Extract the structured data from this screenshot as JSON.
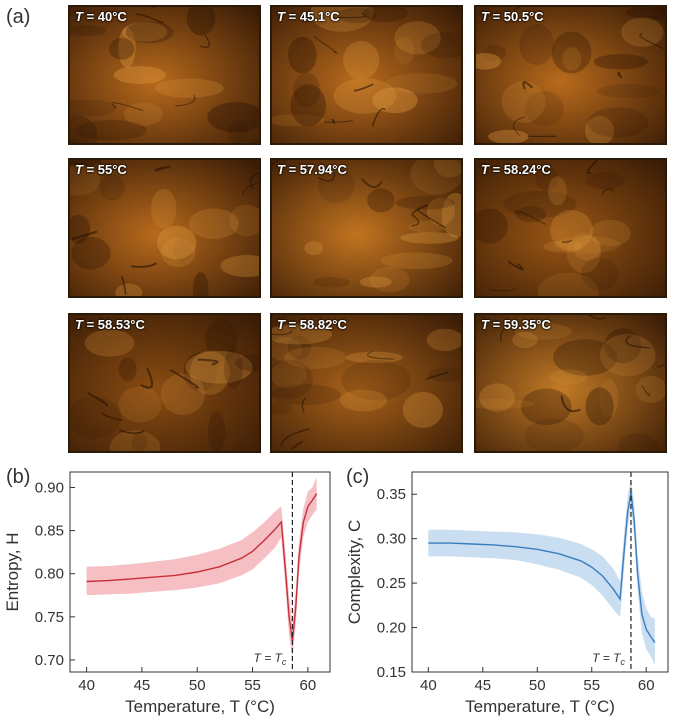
{
  "panel_labels": {
    "a": "(a)",
    "b": "(b)",
    "c": "(c)"
  },
  "micrographs": [
    {
      "symbol": "T",
      "value": " = 40°C",
      "tone": "#b86a1c",
      "dark": 0.55
    },
    {
      "symbol": "T",
      "value": " = 45.1°C",
      "tone": "#b86a1c",
      "dark": 0.55
    },
    {
      "symbol": "T",
      "value": " = 50.5°C",
      "tone": "#b86a1c",
      "dark": 0.55
    },
    {
      "symbol": "T",
      "value": " = 55°C",
      "tone": "#b86a1c",
      "dark": 0.55
    },
    {
      "symbol": "T",
      "value": " = 57.94°C",
      "tone": "#c27420",
      "dark": 0.45
    },
    {
      "symbol": "T",
      "value": " = 58.24°C",
      "tone": "#9a5614",
      "dark": 0.35
    },
    {
      "symbol": "T",
      "value": " = 58.53°C",
      "tone": "#8a4c12",
      "dark": 0.35
    },
    {
      "symbol": "T",
      "value": " = 58.82°C",
      "tone": "#a8621a",
      "dark": 0.4
    },
    {
      "symbol": "T",
      "value": " = 59.35°C",
      "tone": "#c27a26",
      "dark": 0.5
    }
  ],
  "chart_data": [
    {
      "type": "line",
      "panel": "(b)",
      "xlabel": "Temperature, T (°C)",
      "ylabel": "Entropy, H",
      "xlim": [
        38.5,
        62
      ],
      "ylim": [
        0.686,
        0.918
      ],
      "xticks": [
        40,
        45,
        50,
        55,
        60
      ],
      "yticks": [
        "0.70",
        "0.75",
        "0.80",
        "0.85",
        "0.90"
      ],
      "ytick_values": [
        0.7,
        0.75,
        0.8,
        0.85,
        0.9
      ],
      "color": "#c8313a",
      "band_color": "#f2a9b0",
      "vline_x": 58.6,
      "vline_label": "T = T_c",
      "x": [
        40,
        42,
        44,
        46,
        48,
        50,
        52,
        54,
        55,
        56,
        57,
        57.6,
        58,
        58.3,
        58.6,
        58.9,
        59.2,
        59.6,
        60,
        60.4,
        60.8
      ],
      "y": [
        0.791,
        0.792,
        0.794,
        0.796,
        0.798,
        0.802,
        0.808,
        0.818,
        0.826,
        0.838,
        0.851,
        0.86,
        0.8,
        0.75,
        0.722,
        0.76,
        0.82,
        0.86,
        0.878,
        0.885,
        0.893
      ],
      "upper": [
        0.808,
        0.809,
        0.811,
        0.814,
        0.817,
        0.822,
        0.829,
        0.839,
        0.848,
        0.859,
        0.872,
        0.878,
        0.822,
        0.772,
        0.742,
        0.78,
        0.838,
        0.876,
        0.895,
        0.9,
        0.912
      ],
      "lower": [
        0.775,
        0.776,
        0.777,
        0.779,
        0.781,
        0.784,
        0.789,
        0.798,
        0.805,
        0.817,
        0.83,
        0.842,
        0.78,
        0.728,
        0.703,
        0.74,
        0.801,
        0.843,
        0.86,
        0.868,
        0.875
      ]
    },
    {
      "type": "line",
      "panel": "(c)",
      "xlabel": "Temperature, T (°C)",
      "ylabel": "Complexity, C",
      "xlim": [
        38.5,
        62
      ],
      "ylim": [
        0.15,
        0.375
      ],
      "xticks": [
        40,
        45,
        50,
        55,
        60
      ],
      "yticks": [
        "0.15",
        "0.20",
        "0.25",
        "0.30",
        "0.35"
      ],
      "ytick_values": [
        0.15,
        0.2,
        0.25,
        0.3,
        0.35
      ],
      "color": "#3b7dc0",
      "band_color": "#b7d4ec",
      "vline_x": 58.6,
      "vline_label": "T = T_c",
      "x": [
        40,
        42,
        44,
        46,
        48,
        50,
        52,
        54,
        55,
        56,
        57,
        57.6,
        58,
        58.3,
        58.6,
        58.9,
        59.2,
        59.6,
        60,
        60.4,
        60.8
      ],
      "y": [
        0.295,
        0.295,
        0.294,
        0.293,
        0.291,
        0.288,
        0.283,
        0.275,
        0.268,
        0.258,
        0.243,
        0.232,
        0.29,
        0.33,
        0.352,
        0.32,
        0.262,
        0.215,
        0.198,
        0.19,
        0.183
      ],
      "upper": [
        0.31,
        0.31,
        0.309,
        0.308,
        0.307,
        0.305,
        0.301,
        0.294,
        0.288,
        0.28,
        0.266,
        0.252,
        0.31,
        0.348,
        0.368,
        0.338,
        0.283,
        0.24,
        0.222,
        0.212,
        0.21
      ],
      "lower": [
        0.28,
        0.28,
        0.279,
        0.278,
        0.276,
        0.271,
        0.265,
        0.256,
        0.248,
        0.236,
        0.22,
        0.212,
        0.27,
        0.312,
        0.336,
        0.302,
        0.243,
        0.193,
        0.176,
        0.168,
        0.158
      ]
    }
  ]
}
